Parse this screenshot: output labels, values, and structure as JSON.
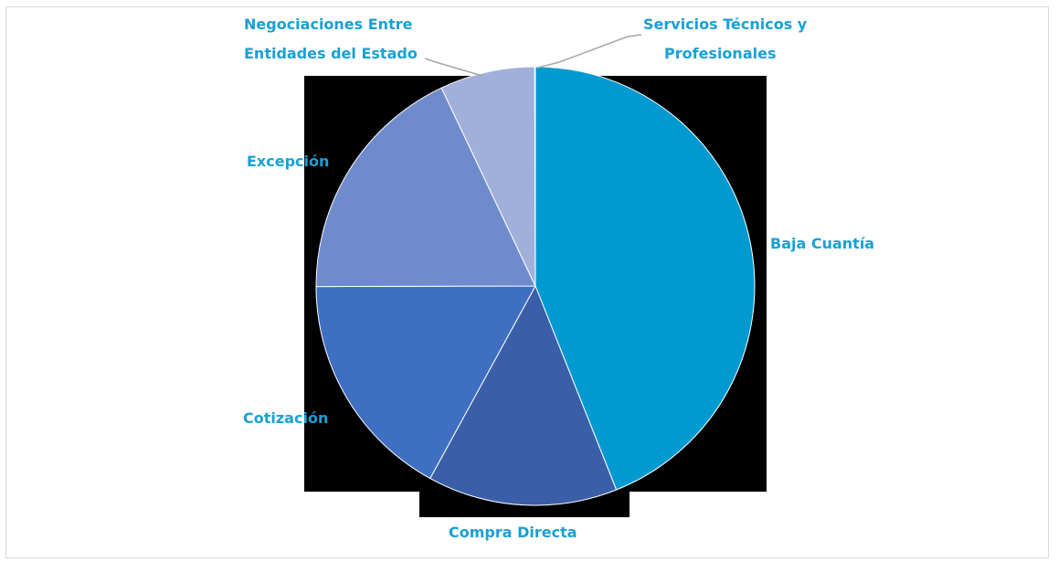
{
  "chart_data": {
    "type": "pie",
    "title": "",
    "slices": [
      {
        "label": "Baja Cuantía",
        "value": 44,
        "color": "#009ad0"
      },
      {
        "label": "Compra Directa",
        "value": 14,
        "color": "#3a5fa8"
      },
      {
        "label": "Cotización",
        "value": 17,
        "color": "#3f6fc0"
      },
      {
        "label": "Excepción",
        "value": 18,
        "color": "#6f8bcc"
      },
      {
        "label": "Negociaciones Entre Entidades del Estado",
        "value": 7,
        "color": "#a0b0da"
      },
      {
        "label": "Servicios Técnicos y Profesionales",
        "value": 0.05,
        "color": "#b8c4e4"
      }
    ],
    "label_color": "#1aa0d4",
    "legend": "none",
    "grid": false
  }
}
